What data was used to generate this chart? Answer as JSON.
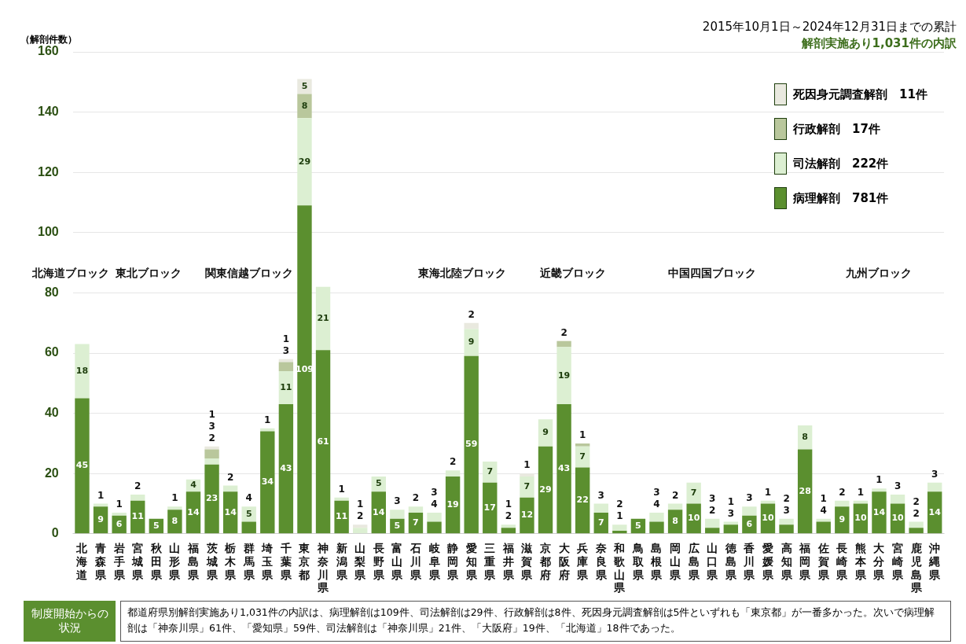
{
  "chart_data": {
    "type": "bar",
    "stacked": true,
    "title": "2015年10月1日～2024年12月31日までの累計",
    "subtitle": "解剖実施あり1,031件の内訳",
    "ylabel": "（解剖件数）",
    "categories": [
      "北海道",
      "青森県",
      "岩手県",
      "宮城県",
      "秋田県",
      "山形県",
      "福島県",
      "茨城県",
      "栃木県",
      "群馬県",
      "埼玉県",
      "千葉県",
      "東京都",
      "神奈川県",
      "新潟県",
      "山梨県",
      "長野県",
      "富山県",
      "石川県",
      "岐阜県",
      "静岡県",
      "愛知県",
      "三重県",
      "福井県",
      "滋賀県",
      "京都府",
      "大阪府",
      "兵庫県",
      "奈良県",
      "和歌山県",
      "鳥取県",
      "島根県",
      "岡山県",
      "広島県",
      "山口県",
      "徳島県",
      "香川県",
      "愛媛県",
      "高知県",
      "福岡県",
      "佐賀県",
      "長崎県",
      "熊本県",
      "大分県",
      "宮崎県",
      "鹿児島県",
      "沖縄県"
    ],
    "series": [
      {
        "name": "病理解剖　781件",
        "color": "#5b8f2f",
        "values": [
          45,
          9,
          6,
          11,
          5,
          8,
          14,
          23,
          14,
          4,
          34,
          43,
          109,
          61,
          11,
          null,
          14,
          5,
          7,
          4,
          19,
          59,
          17,
          2,
          12,
          29,
          43,
          22,
          7,
          1,
          5,
          4,
          8,
          10,
          2,
          3,
          6,
          10,
          3,
          28,
          4,
          9,
          10,
          14,
          10,
          2,
          14
        ]
      },
      {
        "name": "司法解剖　222件",
        "color": "#dcefd2",
        "values": [
          18,
          1,
          1,
          2,
          null,
          1,
          4,
          2,
          2,
          5,
          1,
          11,
          29,
          21,
          1,
          2,
          5,
          3,
          2,
          3,
          2,
          9,
          7,
          1,
          7,
          9,
          19,
          7,
          3,
          2,
          null,
          3,
          2,
          7,
          3,
          1,
          3,
          1,
          2,
          8,
          1,
          2,
          1,
          1,
          3,
          2,
          3
        ]
      },
      {
        "name": "行政解剖　17件",
        "color": "#b9c79c",
        "values": [
          null,
          null,
          null,
          null,
          null,
          null,
          null,
          3,
          null,
          null,
          null,
          3,
          8,
          null,
          null,
          null,
          null,
          null,
          null,
          null,
          null,
          null,
          null,
          null,
          null,
          null,
          2,
          1,
          null,
          null,
          null,
          null,
          null,
          null,
          null,
          null,
          null,
          null,
          null,
          null,
          null,
          null,
          null,
          null,
          null,
          null,
          null
        ]
      },
      {
        "name": "死因身元調査解剖　11件",
        "color": "#e9e9df",
        "values": [
          null,
          null,
          null,
          null,
          null,
          null,
          null,
          1,
          null,
          null,
          null,
          1,
          5,
          null,
          null,
          1,
          null,
          null,
          null,
          null,
          null,
          2,
          null,
          null,
          1,
          null,
          null,
          null,
          null,
          null,
          null,
          null,
          null,
          null,
          null,
          null,
          null,
          null,
          null,
          null,
          null,
          null,
          null,
          null,
          null,
          null,
          null
        ]
      }
    ],
    "data_labels": true,
    "ylim": [
      0,
      160
    ],
    "yticks": [
      0,
      20,
      40,
      60,
      80,
      100,
      120,
      140,
      160
    ],
    "grid": "y",
    "legend": "top right",
    "annotations": [
      "北海道ブロック",
      "東北ブロック",
      "関東信越ブロック",
      "東海北陸ブロック",
      "近畿ブロック",
      "中国四国ブロック",
      "九州ブロック",
      "制度開始からの状況",
      "都道府県別解剖実施あり1,031件の内訳は、病理解剖は109件、司法解剖は29件、行政解剖は8件、死因身元調査解剖は5件といずれも「東京都」が一番多かった。次いで病理解剖は「神奈川県」61件、「愛知県」59件、司法解剖は「神奈川県」21件、「大阪府」19件、「北海道」18件であった。"
    ]
  }
}
